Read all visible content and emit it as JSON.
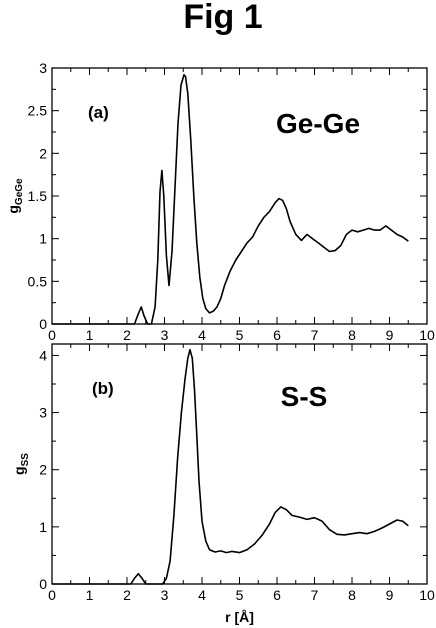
{
  "figure_title": "Fig 1",
  "chart_data": [
    {
      "type": "line",
      "panel_label": "(a)",
      "annotation": "Ge-Ge",
      "ylabel_main": "g",
      "ylabel_sub": "GeGe",
      "xlim": [
        0,
        10
      ],
      "ylim": [
        0,
        3
      ],
      "xticks": [
        0,
        1,
        2,
        3,
        4,
        5,
        6,
        7,
        8,
        9,
        10
      ],
      "yticks": [
        "0",
        "0.5",
        "1",
        "1.5",
        "2",
        "2.5",
        "3"
      ],
      "series": [
        {
          "x": [
            0,
            2.2,
            2.3,
            2.38,
            2.45,
            2.55,
            2.65,
            2.75,
            2.82,
            2.88,
            2.93,
            2.98,
            3.05,
            3.12,
            3.2,
            3.28,
            3.36,
            3.44,
            3.52,
            3.56,
            3.62,
            3.7,
            3.78,
            3.86,
            3.94,
            4.02,
            4.1,
            4.2,
            4.3,
            4.4,
            4.5,
            4.6,
            4.75,
            4.9,
            5.05,
            5.2,
            5.35,
            5.5,
            5.65,
            5.8,
            5.95,
            6.05,
            6.15,
            6.25,
            6.35,
            6.5,
            6.65,
            6.8,
            6.95,
            7.1,
            7.25,
            7.4,
            7.55,
            7.7,
            7.85,
            8.0,
            8.15,
            8.3,
            8.45,
            8.6,
            8.75,
            8.9,
            9.05,
            9.2,
            9.35,
            9.5
          ],
          "y": [
            0,
            0,
            0.12,
            0.2,
            0.1,
            0,
            0,
            0.2,
            0.75,
            1.55,
            1.8,
            1.5,
            0.8,
            0.45,
            0.85,
            1.6,
            2.35,
            2.8,
            2.92,
            2.9,
            2.7,
            2.15,
            1.5,
            0.95,
            0.55,
            0.3,
            0.18,
            0.13,
            0.15,
            0.2,
            0.3,
            0.45,
            0.62,
            0.75,
            0.85,
            0.95,
            1.02,
            1.15,
            1.25,
            1.32,
            1.42,
            1.47,
            1.45,
            1.35,
            1.2,
            1.05,
            0.98,
            1.05,
            1.0,
            0.95,
            0.9,
            0.85,
            0.86,
            0.92,
            1.05,
            1.1,
            1.08,
            1.1,
            1.12,
            1.1,
            1.1,
            1.15,
            1.1,
            1.05,
            1.02,
            0.97
          ]
        }
      ]
    },
    {
      "type": "line",
      "panel_label": "(b)",
      "annotation": "S-S",
      "ylabel_main": "g",
      "ylabel_sub": "SS",
      "xlabel": "r  [Å]",
      "xlim": [
        0,
        10
      ],
      "ylim": [
        0,
        4.2
      ],
      "xticks": [
        0,
        1,
        2,
        3,
        4,
        5,
        6,
        7,
        8,
        9,
        10
      ],
      "yticks": [
        "0",
        "1",
        "2",
        "3",
        "4"
      ],
      "series": [
        {
          "x": [
            0,
            2.1,
            2.2,
            2.3,
            2.4,
            2.5,
            2.95,
            3.05,
            3.15,
            3.25,
            3.35,
            3.45,
            3.55,
            3.62,
            3.68,
            3.74,
            3.8,
            3.86,
            3.92,
            4.0,
            4.1,
            4.2,
            4.35,
            4.5,
            4.65,
            4.8,
            5.0,
            5.2,
            5.4,
            5.6,
            5.8,
            5.95,
            6.1,
            6.25,
            6.4,
            6.6,
            6.8,
            7.0,
            7.2,
            7.4,
            7.6,
            7.8,
            8.0,
            8.2,
            8.4,
            8.6,
            8.8,
            9.0,
            9.2,
            9.35,
            9.5
          ],
          "y": [
            0,
            0,
            0.1,
            0.18,
            0.1,
            0,
            0,
            0.1,
            0.4,
            1.2,
            2.2,
            3.0,
            3.6,
            3.95,
            4.1,
            3.95,
            3.4,
            2.6,
            1.8,
            1.1,
            0.75,
            0.6,
            0.56,
            0.58,
            0.55,
            0.57,
            0.55,
            0.6,
            0.7,
            0.85,
            1.05,
            1.25,
            1.35,
            1.3,
            1.2,
            1.17,
            1.13,
            1.16,
            1.1,
            0.95,
            0.87,
            0.86,
            0.88,
            0.9,
            0.88,
            0.92,
            0.98,
            1.05,
            1.12,
            1.1,
            1.02
          ]
        }
      ]
    }
  ]
}
